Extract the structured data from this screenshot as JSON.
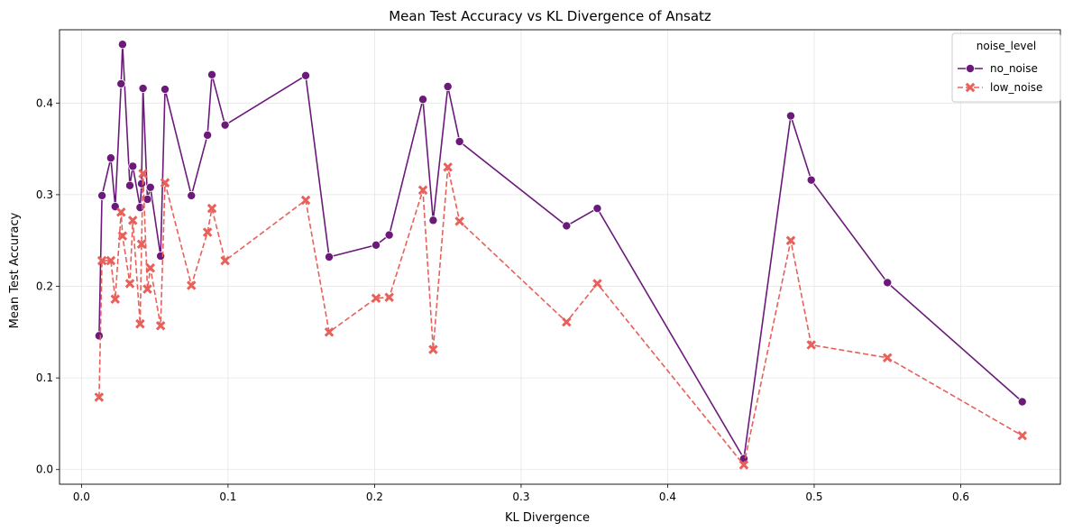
{
  "chart_data": {
    "type": "line",
    "title": "Mean Test Accuracy vs KL Divergence of Ansatz",
    "xlabel": "KL Divergence",
    "ylabel": "Mean Test Accuracy",
    "xlim": [
      -0.015,
      0.668
    ],
    "ylim": [
      -0.016,
      0.48
    ],
    "xticks": [
      0.0,
      0.1,
      0.2,
      0.3,
      0.4,
      0.5,
      0.6
    ],
    "xtick_labels": [
      "0.0",
      "0.1",
      "0.2",
      "0.3",
      "0.4",
      "0.5",
      "0.6"
    ],
    "yticks": [
      0.0,
      0.1,
      0.2,
      0.3,
      0.4
    ],
    "ytick_labels": [
      "0.0",
      "0.1",
      "0.2",
      "0.3",
      "0.4"
    ],
    "grid": true,
    "legend": {
      "title": "noise_level",
      "position": "top-right"
    },
    "series": [
      {
        "name": "no_noise",
        "color": "#6b1a7a",
        "marker": "circle",
        "line_style": "solid",
        "points": [
          [
            0.012,
            0.146
          ],
          [
            0.014,
            0.299
          ],
          [
            0.02,
            0.34
          ],
          [
            0.023,
            0.287
          ],
          [
            0.027,
            0.421
          ],
          [
            0.028,
            0.464
          ],
          [
            0.033,
            0.31
          ],
          [
            0.035,
            0.331
          ],
          [
            0.04,
            0.286
          ],
          [
            0.041,
            0.312
          ],
          [
            0.042,
            0.416
          ],
          [
            0.045,
            0.295
          ],
          [
            0.047,
            0.308
          ],
          [
            0.054,
            0.233
          ],
          [
            0.057,
            0.415
          ],
          [
            0.075,
            0.299
          ],
          [
            0.086,
            0.365
          ],
          [
            0.089,
            0.431
          ],
          [
            0.098,
            0.376
          ],
          [
            0.153,
            0.43
          ],
          [
            0.169,
            0.232
          ],
          [
            0.201,
            0.245
          ],
          [
            0.21,
            0.256
          ],
          [
            0.233,
            0.404
          ],
          [
            0.24,
            0.272
          ],
          [
            0.25,
            0.418
          ],
          [
            0.258,
            0.358
          ],
          [
            0.331,
            0.266
          ],
          [
            0.352,
            0.285
          ],
          [
            0.452,
            0.012
          ],
          [
            0.484,
            0.386
          ],
          [
            0.498,
            0.316
          ],
          [
            0.55,
            0.204
          ],
          [
            0.642,
            0.074
          ]
        ]
      },
      {
        "name": "low_noise",
        "color": "#e8605a",
        "marker": "x",
        "line_style": "dashed",
        "points": [
          [
            0.012,
            0.079
          ],
          [
            0.014,
            0.228
          ],
          [
            0.02,
            0.228
          ],
          [
            0.023,
            0.186
          ],
          [
            0.027,
            0.281
          ],
          [
            0.028,
            0.255
          ],
          [
            0.033,
            0.203
          ],
          [
            0.035,
            0.272
          ],
          [
            0.04,
            0.159
          ],
          [
            0.041,
            0.246
          ],
          [
            0.042,
            0.323
          ],
          [
            0.045,
            0.197
          ],
          [
            0.047,
            0.22
          ],
          [
            0.054,
            0.157
          ],
          [
            0.057,
            0.313
          ],
          [
            0.075,
            0.201
          ],
          [
            0.086,
            0.259
          ],
          [
            0.089,
            0.285
          ],
          [
            0.098,
            0.228
          ],
          [
            0.153,
            0.294
          ],
          [
            0.169,
            0.15
          ],
          [
            0.201,
            0.187
          ],
          [
            0.21,
            0.188
          ],
          [
            0.233,
            0.305
          ],
          [
            0.24,
            0.131
          ],
          [
            0.25,
            0.33
          ],
          [
            0.258,
            0.271
          ],
          [
            0.331,
            0.161
          ],
          [
            0.352,
            0.203
          ],
          [
            0.452,
            0.005
          ],
          [
            0.484,
            0.25
          ],
          [
            0.498,
            0.136
          ],
          [
            0.55,
            0.122
          ],
          [
            0.642,
            0.037
          ]
        ]
      }
    ]
  }
}
